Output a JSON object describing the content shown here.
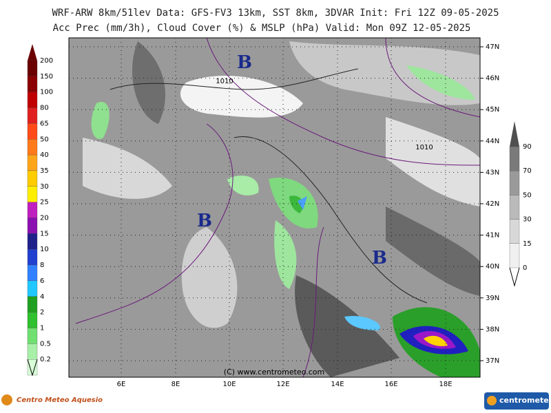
{
  "header": {
    "line1": "WRF-ARW 8km/51lev  Data: GFS-FV3 13km, SST 8km, 3DVAR  Init: Fri 12Z 09-05-2025",
    "line2": "Acc Prec (mm/3h), Cloud Cover (%) & MSLP (hPa)  Valid: Mon 09Z 12-05-2025"
  },
  "precip_scale": {
    "labels": [
      "200",
      "150",
      "100",
      "80",
      "65",
      "50",
      "40",
      "35",
      "30",
      "25",
      "20",
      "15",
      "10",
      "8",
      "6",
      "4",
      "2",
      "1",
      "0.5",
      "0.2"
    ]
  },
  "cloud_scale": {
    "labels": [
      "90",
      "70",
      "50",
      "30",
      "15",
      "0"
    ]
  },
  "map": {
    "lon_labels": [
      "6E",
      "8E",
      "10E",
      "12E",
      "14E",
      "16E",
      "18E"
    ],
    "lat_labels": [
      "47N",
      "46N",
      "45N",
      "44N",
      "43N",
      "42N",
      "41N",
      "40N",
      "39N",
      "38N",
      "37N"
    ],
    "pressure_centers": [
      "B",
      "B",
      "B"
    ],
    "isobar_labels": [
      "1010",
      "1010"
    ],
    "copyright": "(C) www.centrometeo.com"
  },
  "footer": {
    "left_logo": "Centro Meteo Aquesio",
    "right_logo": "centrometeo"
  }
}
